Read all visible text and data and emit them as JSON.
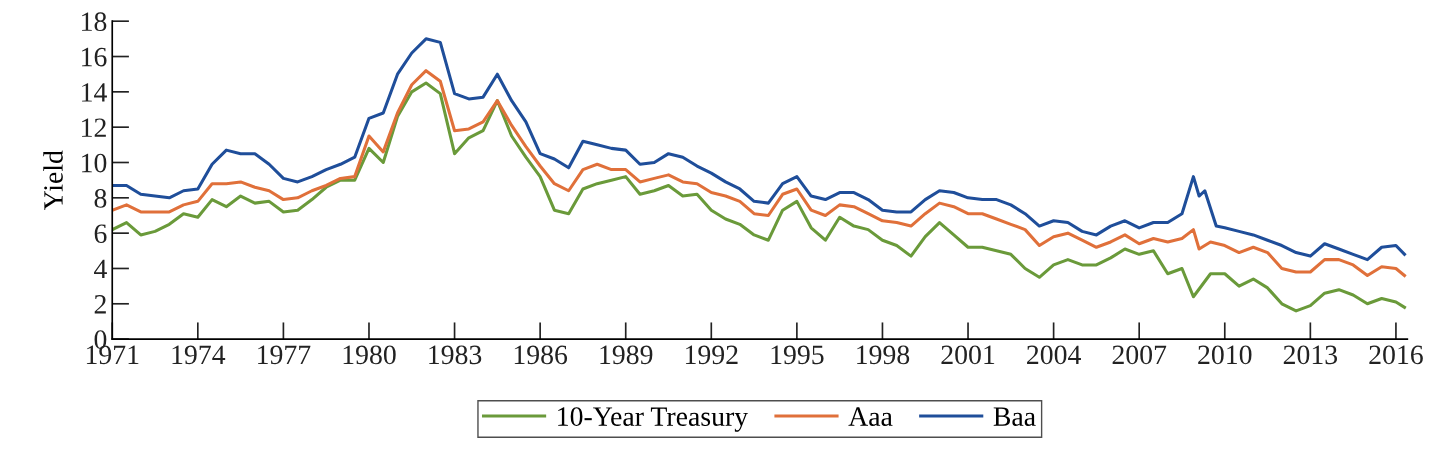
{
  "chart_data": {
    "type": "line",
    "ylabel": "Yield",
    "xlim": [
      1971,
      2016.4
    ],
    "xticks": [
      1971,
      1974,
      1977,
      1980,
      1983,
      1986,
      1989,
      1992,
      1995,
      1998,
      2001,
      2004,
      2007,
      2010,
      2013,
      2016
    ],
    "ylim": [
      0,
      18
    ],
    "yticks": [
      0,
      2,
      4,
      6,
      8,
      10,
      12,
      14,
      16,
      18
    ],
    "grid": false,
    "legend": "bottom",
    "marker": "none",
    "line_style": "solid",
    "series": [
      {
        "name": "10-Year Treasury",
        "color": "#6a9a3a",
        "x": [
          1971,
          1971.5,
          1972,
          1972.5,
          1973,
          1973.5,
          1974,
          1974.5,
          1975,
          1975.5,
          1976,
          1976.5,
          1977,
          1977.5,
          1978,
          1978.5,
          1979,
          1979.5,
          1980,
          1980.5,
          1981,
          1981.5,
          1982,
          1982.5,
          1983,
          1983.5,
          1984,
          1984.5,
          1985,
          1985.5,
          1986,
          1986.5,
          1987,
          1987.5,
          1988,
          1988.5,
          1989,
          1989.5,
          1990,
          1990.5,
          1991,
          1991.5,
          1992,
          1992.5,
          1993,
          1993.5,
          1994,
          1994.5,
          1995,
          1995.5,
          1996,
          1996.5,
          1997,
          1997.5,
          1998,
          1998.5,
          1999,
          1999.5,
          2000,
          2000.5,
          2001,
          2001.5,
          2002,
          2002.5,
          2003,
          2003.5,
          2004,
          2004.5,
          2005,
          2005.5,
          2006,
          2006.5,
          2007,
          2007.5,
          2008,
          2008.5,
          2008.9,
          2009.5,
          2010,
          2010.5,
          2011,
          2011.5,
          2012,
          2012.5,
          2013,
          2013.5,
          2014,
          2014.5,
          2015,
          2015.5,
          2016,
          2016.3
        ],
        "values": [
          6.2,
          6.6,
          5.9,
          6.1,
          6.5,
          7.1,
          6.9,
          7.9,
          7.5,
          8.1,
          7.7,
          7.8,
          7.2,
          7.3,
          7.9,
          8.6,
          9.0,
          9.0,
          10.8,
          10.0,
          12.6,
          14.0,
          14.5,
          13.9,
          10.5,
          11.4,
          11.8,
          13.5,
          11.5,
          10.3,
          9.2,
          7.3,
          7.1,
          8.5,
          8.8,
          9.0,
          9.2,
          8.2,
          8.4,
          8.7,
          8.1,
          8.2,
          7.3,
          6.8,
          6.5,
          5.9,
          5.6,
          7.3,
          7.8,
          6.3,
          5.6,
          6.9,
          6.4,
          6.2,
          5.6,
          5.3,
          4.7,
          5.8,
          6.6,
          5.9,
          5.2,
          5.2,
          5.0,
          4.8,
          4.0,
          3.5,
          4.2,
          4.5,
          4.2,
          4.2,
          4.6,
          5.1,
          4.8,
          5.0,
          3.7,
          4.0,
          2.4,
          3.7,
          3.7,
          3.0,
          3.4,
          2.9,
          2.0,
          1.6,
          1.9,
          2.6,
          2.8,
          2.5,
          2.0,
          2.3,
          2.1,
          1.8
        ]
      },
      {
        "name": "Aaa",
        "color": "#e0703a",
        "x": [
          1971,
          1971.5,
          1972,
          1972.5,
          1973,
          1973.5,
          1974,
          1974.5,
          1975,
          1975.5,
          1976,
          1976.5,
          1977,
          1977.5,
          1978,
          1978.5,
          1979,
          1979.5,
          1980,
          1980.5,
          1981,
          1981.5,
          1982,
          1982.5,
          1983,
          1983.5,
          1984,
          1984.5,
          1985,
          1985.5,
          1986,
          1986.5,
          1987,
          1987.5,
          1988,
          1988.5,
          1989,
          1989.5,
          1990,
          1990.5,
          1991,
          1991.5,
          1992,
          1992.5,
          1993,
          1993.5,
          1994,
          1994.5,
          1995,
          1995.5,
          1996,
          1996.5,
          1997,
          1997.5,
          1998,
          1998.5,
          1999,
          1999.5,
          2000,
          2000.5,
          2001,
          2001.5,
          2002,
          2002.5,
          2003,
          2003.5,
          2004,
          2004.5,
          2005,
          2005.5,
          2006,
          2006.5,
          2007,
          2007.5,
          2008,
          2008.5,
          2008.9,
          2009.1,
          2009.5,
          2010,
          2010.5,
          2011,
          2011.5,
          2012,
          2012.5,
          2013,
          2013.5,
          2014,
          2014.5,
          2015,
          2015.5,
          2016,
          2016.3
        ],
        "values": [
          7.3,
          7.6,
          7.2,
          7.2,
          7.2,
          7.6,
          7.8,
          8.8,
          8.8,
          8.9,
          8.6,
          8.4,
          7.9,
          8.0,
          8.4,
          8.7,
          9.1,
          9.2,
          11.5,
          10.6,
          12.8,
          14.4,
          15.2,
          14.6,
          11.8,
          11.9,
          12.3,
          13.5,
          12.1,
          10.9,
          9.8,
          8.8,
          8.4,
          9.6,
          9.9,
          9.6,
          9.6,
          8.9,
          9.1,
          9.3,
          8.9,
          8.8,
          8.3,
          8.1,
          7.8,
          7.1,
          7.0,
          8.2,
          8.5,
          7.3,
          7.0,
          7.6,
          7.5,
          7.1,
          6.7,
          6.6,
          6.4,
          7.1,
          7.7,
          7.5,
          7.1,
          7.1,
          6.8,
          6.5,
          6.2,
          5.3,
          5.8,
          6.0,
          5.6,
          5.2,
          5.5,
          5.9,
          5.4,
          5.7,
          5.5,
          5.7,
          6.2,
          5.1,
          5.5,
          5.3,
          4.9,
          5.2,
          4.9,
          4.0,
          3.8,
          3.8,
          4.5,
          4.5,
          4.2,
          3.6,
          4.1,
          4.0,
          3.6
        ]
      },
      {
        "name": "Baa",
        "color": "#1f4e9a",
        "x": [
          1971,
          1971.5,
          1972,
          1972.5,
          1973,
          1973.5,
          1974,
          1974.5,
          1975,
          1975.5,
          1976,
          1976.5,
          1977,
          1977.5,
          1978,
          1978.5,
          1979,
          1979.5,
          1980,
          1980.5,
          1981,
          1981.5,
          1982,
          1982.5,
          1983,
          1983.5,
          1984,
          1984.5,
          1985,
          1985.5,
          1986,
          1986.5,
          1987,
          1987.5,
          1988,
          1988.5,
          1989,
          1989.5,
          1990,
          1990.5,
          1991,
          1991.5,
          1992,
          1992.5,
          1993,
          1993.5,
          1994,
          1994.5,
          1995,
          1995.5,
          1996,
          1996.5,
          1997,
          1997.5,
          1998,
          1998.5,
          1999,
          1999.5,
          2000,
          2000.5,
          2001,
          2001.5,
          2002,
          2002.5,
          2003,
          2003.5,
          2004,
          2004.5,
          2005,
          2005.5,
          2006,
          2006.5,
          2007,
          2007.5,
          2008,
          2008.5,
          2008.9,
          2009.1,
          2009.3,
          2009.7,
          2010,
          2010.5,
          2011,
          2011.5,
          2012,
          2012.5,
          2013,
          2013.5,
          2014,
          2014.5,
          2015,
          2015.5,
          2016,
          2016.3
        ],
        "values": [
          8.7,
          8.7,
          8.2,
          8.1,
          8.0,
          8.4,
          8.5,
          9.9,
          10.7,
          10.5,
          10.5,
          9.9,
          9.1,
          8.9,
          9.2,
          9.6,
          9.9,
          10.3,
          12.5,
          12.8,
          15.0,
          16.2,
          17.0,
          16.8,
          13.9,
          13.6,
          13.7,
          15.0,
          13.5,
          12.3,
          10.5,
          10.2,
          9.7,
          11.2,
          11.0,
          10.8,
          10.7,
          9.9,
          10.0,
          10.5,
          10.3,
          9.8,
          9.4,
          8.9,
          8.5,
          7.8,
          7.7,
          8.8,
          9.2,
          8.1,
          7.9,
          8.3,
          8.3,
          7.9,
          7.3,
          7.2,
          7.2,
          7.9,
          8.4,
          8.3,
          8.0,
          7.9,
          7.9,
          7.6,
          7.1,
          6.4,
          6.7,
          6.6,
          6.1,
          5.9,
          6.4,
          6.7,
          6.3,
          6.6,
          6.6,
          7.1,
          9.2,
          8.1,
          8.4,
          6.4,
          6.3,
          6.1,
          5.9,
          5.6,
          5.3,
          4.9,
          4.7,
          5.4,
          5.1,
          4.8,
          4.5,
          5.2,
          5.3,
          4.8
        ]
      }
    ]
  }
}
